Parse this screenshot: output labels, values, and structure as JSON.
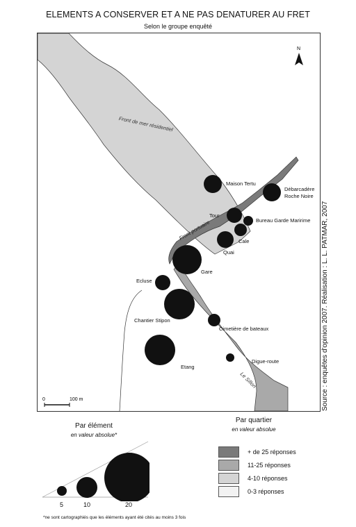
{
  "title": "ELEMENTS A CONSERVER ET A NE PAS DENATURER AU FRET",
  "subtitle": "Selon le groupe enquêté",
  "source": "Source : enquêtes d'opinion 2007. Réalisation : L. L. PATMAR, 2007",
  "north_label": "N",
  "scale_bar": {
    "start": "0",
    "end": "100 m"
  },
  "areas": [
    {
      "name": "Front de mer résidentiel",
      "class": "4-10 réponses"
    },
    {
      "name": "Front portuaire",
      "class": "+ de 25 réponses"
    },
    {
      "name": "Le Sillon",
      "class": "11-25 réponses"
    }
  ],
  "elements": [
    {
      "label": "Maison Tertu"
    },
    {
      "label": "Débarcadère\nRoche Noire"
    },
    {
      "label": "Tour"
    },
    {
      "label": "Bureau Garde Maririme"
    },
    {
      "label": "Cale"
    },
    {
      "label": "Quai"
    },
    {
      "label": "Gare"
    },
    {
      "label": "Ecluse"
    },
    {
      "label": "Chantier Stipon"
    },
    {
      "label": "Cimetière de bateaux"
    },
    {
      "label": "Digue-route"
    },
    {
      "label": "Etang"
    }
  ],
  "legend_element": {
    "title": "Par élément",
    "subtitle": "en valeur absolue*",
    "sizes": [
      "5",
      "10",
      "20"
    ]
  },
  "legend_quartier": {
    "title": "Par quartier",
    "subtitle": "en valeur absolue",
    "classes": [
      {
        "label": "+ de 25 réponses",
        "color": "#7a7a7a"
      },
      {
        "label": "11-25 réponses",
        "color": "#a9a9a9"
      },
      {
        "label": "4-10 réponses",
        "color": "#d4d4d4"
      },
      {
        "label": "0-3 réponses",
        "color": "#f2f2f2"
      }
    ]
  },
  "footnote": "*ne sont cartographiés que les éléments ayant été cités au moins 3 fois"
}
